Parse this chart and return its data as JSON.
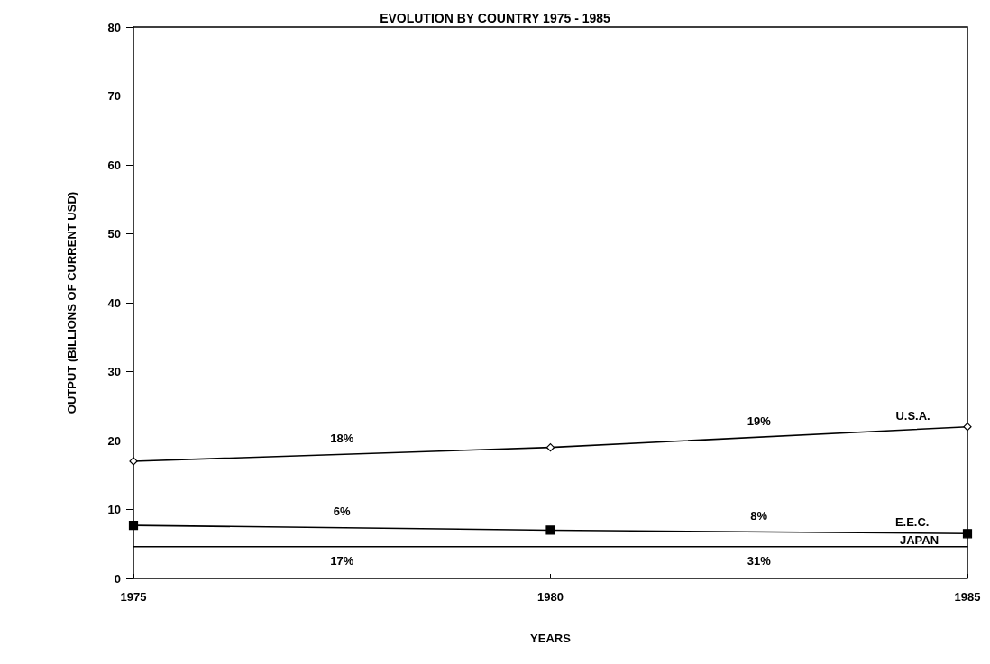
{
  "chart_data": {
    "type": "line",
    "title": "EVOLUTION BY COUNTRY 1975 - 1985",
    "xlabel": "YEARS",
    "ylabel": "OUTPUT (BILLIONS OF CURRENT USD)",
    "x": [
      1975,
      1980,
      1985
    ],
    "series": [
      {
        "name": "U.S.A.",
        "color": "#000000",
        "marker": "diamond",
        "values": [
          17,
          19,
          22
        ]
      },
      {
        "name": "E.E.C.",
        "color": "#000000",
        "marker": "square",
        "values": [
          7.7,
          7,
          6.5
        ]
      },
      {
        "name": "JAPAN",
        "color": "#000000",
        "marker": "none",
        "values": [
          4.6,
          4.6,
          4.6
        ]
      }
    ],
    "annotations": [
      "18%",
      "19%",
      "6%",
      "8%",
      "17%",
      "31%"
    ],
    "xlim": [
      1975,
      1985
    ],
    "xticks": [
      1975,
      1980,
      1985
    ],
    "ylim": [
      0,
      80
    ],
    "yticks": [
      0,
      10,
      20,
      30,
      40,
      50,
      60,
      70,
      80
    ],
    "grid": false,
    "legend": false,
    "line_style": "solid"
  }
}
